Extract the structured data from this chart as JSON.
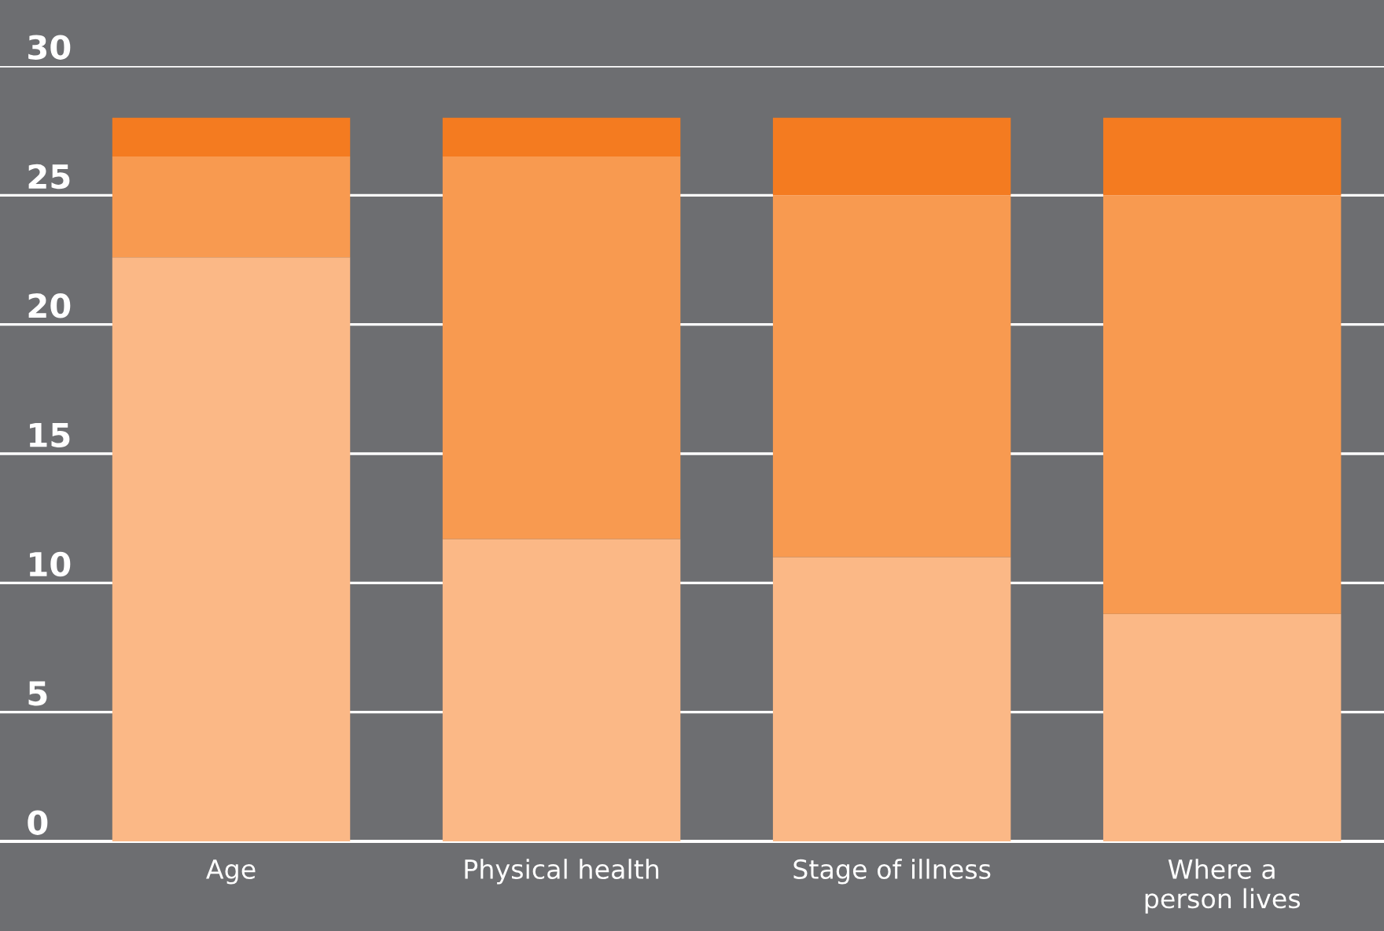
{
  "chart_data": {
    "type": "bar",
    "stacked": true,
    "categories": [
      "Age",
      "Physical health",
      "Stage of illness",
      "Where a\nperson lives"
    ],
    "series": [
      {
        "color": "#fbb886",
        "values": [
          22.6,
          11.7,
          11.0,
          8.8
        ]
      },
      {
        "color": "#f89a50",
        "values": [
          3.9,
          14.8,
          14.0,
          16.2
        ]
      },
      {
        "color": "#f47b20",
        "values": [
          1.5,
          1.5,
          3.0,
          3.0
        ]
      }
    ],
    "ylim": [
      0,
      30
    ],
    "yticks": [
      0,
      5,
      10,
      15,
      20,
      25,
      30
    ],
    "grid": "y",
    "legend": false
  }
}
